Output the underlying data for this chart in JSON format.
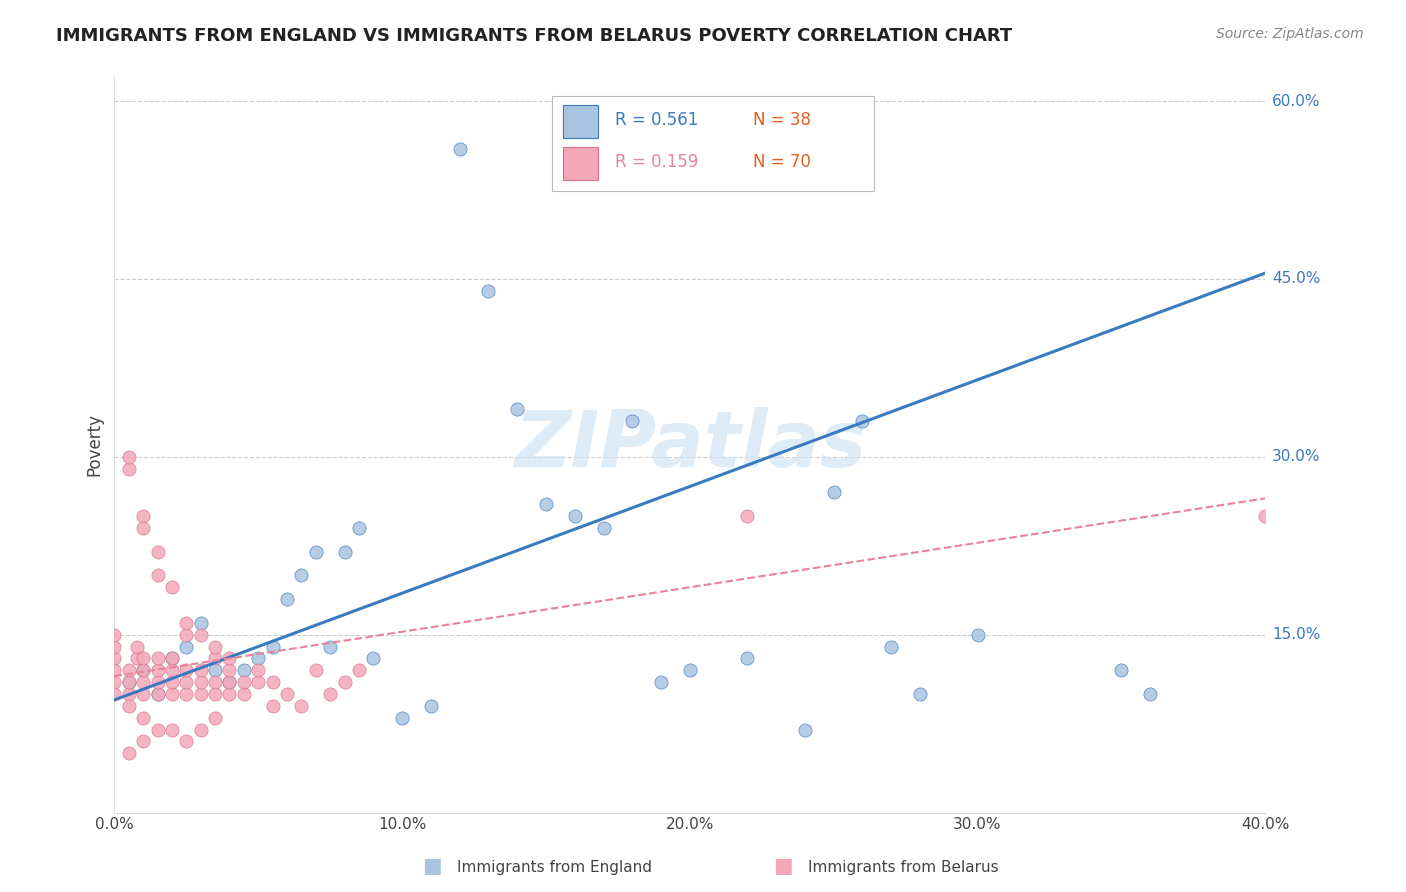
{
  "title": "IMMIGRANTS FROM ENGLAND VS IMMIGRANTS FROM BELARUS POVERTY CORRELATION CHART",
  "source": "Source: ZipAtlas.com",
  "xlabel_bottom": [
    "0.0%",
    "10.0%",
    "20.0%",
    "30.0%",
    "40.0%"
  ],
  "ylabel_right": [
    "60.0%",
    "45.0%",
    "30.0%",
    "15.0%"
  ],
  "ylabel_right_vals": [
    0.6,
    0.45,
    0.3,
    0.15
  ],
  "ylabel_label": "Poverty",
  "legend_labels": [
    "Immigrants from England",
    "Immigrants from Belarus"
  ],
  "legend_r": [
    "R = 0.561",
    "R = 0.159"
  ],
  "legend_n": [
    "N = 38",
    "N = 70"
  ],
  "england_color": "#a8c4e0",
  "belarus_color": "#f4a7b9",
  "england_line_color": "#3a7abf",
  "belarus_line_color": "#e8849a",
  "england_n_color": "#e06020",
  "belarus_n_color": "#e06020",
  "watermark_color": "#d0e4f5",
  "england_scatter_x": [
    0.005,
    0.01,
    0.015,
    0.02,
    0.025,
    0.03,
    0.035,
    0.04,
    0.045,
    0.05,
    0.055,
    0.06,
    0.065,
    0.07,
    0.075,
    0.08,
    0.085,
    0.09,
    0.1,
    0.11,
    0.12,
    0.13,
    0.14,
    0.15,
    0.16,
    0.17,
    0.18,
    0.2,
    0.22,
    0.25,
    0.27,
    0.3,
    0.35,
    0.36,
    0.24,
    0.26,
    0.19,
    0.28
  ],
  "england_scatter_y": [
    0.11,
    0.12,
    0.1,
    0.13,
    0.14,
    0.16,
    0.12,
    0.11,
    0.12,
    0.13,
    0.14,
    0.18,
    0.2,
    0.22,
    0.14,
    0.22,
    0.24,
    0.13,
    0.08,
    0.09,
    0.56,
    0.44,
    0.34,
    0.26,
    0.25,
    0.24,
    0.33,
    0.12,
    0.13,
    0.27,
    0.14,
    0.15,
    0.12,
    0.1,
    0.07,
    0.33,
    0.11,
    0.1
  ],
  "belarus_scatter_x": [
    0.0,
    0.0,
    0.0,
    0.005,
    0.005,
    0.005,
    0.008,
    0.008,
    0.01,
    0.01,
    0.01,
    0.01,
    0.015,
    0.015,
    0.015,
    0.015,
    0.02,
    0.02,
    0.02,
    0.02,
    0.025,
    0.025,
    0.025,
    0.025,
    0.03,
    0.03,
    0.03,
    0.035,
    0.035,
    0.035,
    0.04,
    0.04,
    0.04,
    0.045,
    0.045,
    0.05,
    0.05,
    0.055,
    0.055,
    0.06,
    0.065,
    0.07,
    0.075,
    0.08,
    0.085,
    0.005,
    0.01,
    0.015,
    0.02,
    0.025,
    0.03,
    0.035,
    0.04,
    0.005,
    0.01,
    0.015,
    0.02,
    0.025,
    0.03,
    0.035,
    0.0,
    0.0,
    0.0,
    0.005,
    0.01,
    0.015,
    0.22,
    0.4,
    0.005,
    0.01
  ],
  "belarus_scatter_y": [
    0.1,
    0.11,
    0.12,
    0.1,
    0.11,
    0.12,
    0.13,
    0.14,
    0.1,
    0.11,
    0.12,
    0.13,
    0.1,
    0.11,
    0.12,
    0.13,
    0.1,
    0.11,
    0.12,
    0.13,
    0.1,
    0.11,
    0.12,
    0.15,
    0.1,
    0.11,
    0.12,
    0.1,
    0.11,
    0.13,
    0.1,
    0.11,
    0.12,
    0.1,
    0.11,
    0.11,
    0.12,
    0.09,
    0.11,
    0.1,
    0.09,
    0.12,
    0.1,
    0.11,
    0.12,
    0.29,
    0.25,
    0.22,
    0.19,
    0.16,
    0.15,
    0.14,
    0.13,
    0.09,
    0.08,
    0.07,
    0.07,
    0.06,
    0.07,
    0.08,
    0.13,
    0.14,
    0.15,
    0.3,
    0.24,
    0.2,
    0.25,
    0.25,
    0.05,
    0.06
  ],
  "xlim": [
    0.0,
    0.4
  ],
  "ylim": [
    0.0,
    0.62
  ],
  "england_trend_x": [
    0.0,
    0.4
  ],
  "england_trend_y": [
    0.095,
    0.455
  ],
  "belarus_trend_x": [
    0.0,
    0.4
  ],
  "belarus_trend_y": [
    0.115,
    0.265
  ]
}
